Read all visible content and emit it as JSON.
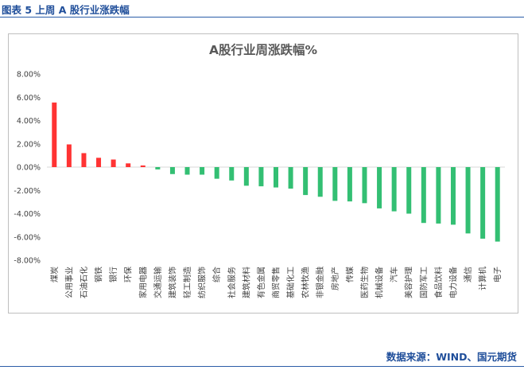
{
  "caption": "图表 5 上周 A 股行业涨跌幅",
  "source": "数据来源：WIND、国元期货",
  "colors": {
    "positive": "#ff3333",
    "negative": "#33bf73",
    "axis": "#d9d9d9",
    "text": "#404040"
  },
  "chart_data": {
    "type": "bar",
    "title": "A股行业周涨跌幅%",
    "xlabel": "",
    "ylabel": "",
    "ylim": [
      -8,
      8
    ],
    "y_ticks": [
      8,
      6,
      4,
      2,
      0,
      -2,
      -4,
      -6,
      -8
    ],
    "y_tick_labels": [
      "8.00%",
      "6.00%",
      "4.00%",
      "2.00%",
      "0.00%",
      "-2.00%",
      "-4.00%",
      "-6.00%",
      "-8.00%"
    ],
    "grid": false,
    "legend": "none",
    "categories": [
      "煤炭",
      "公用事业",
      "石油石化",
      "钢铁",
      "银行",
      "环保",
      "家用电器",
      "交通运输",
      "建筑装饰",
      "轻工制造",
      "纺织服饰",
      "综合",
      "社会服务",
      "建筑材料",
      "有色金属",
      "商贸零售",
      "基础化工",
      "农林牧渔",
      "非银金融",
      "房地产",
      "传媒",
      "医药生物",
      "机械设备",
      "汽车",
      "美容护理",
      "国防军工",
      "食品饮料",
      "电力设备",
      "通信",
      "计算机",
      "电子"
    ],
    "values": [
      5.55,
      1.95,
      1.2,
      0.8,
      0.65,
      0.32,
      0.14,
      -0.2,
      -0.6,
      -0.65,
      -0.65,
      -1.0,
      -1.15,
      -1.6,
      -1.65,
      -1.75,
      -1.85,
      -2.4,
      -2.55,
      -2.9,
      -2.95,
      -3.1,
      -3.55,
      -3.8,
      -4.0,
      -4.8,
      -4.85,
      -4.95,
      -5.7,
      -6.15,
      -6.4
    ]
  }
}
